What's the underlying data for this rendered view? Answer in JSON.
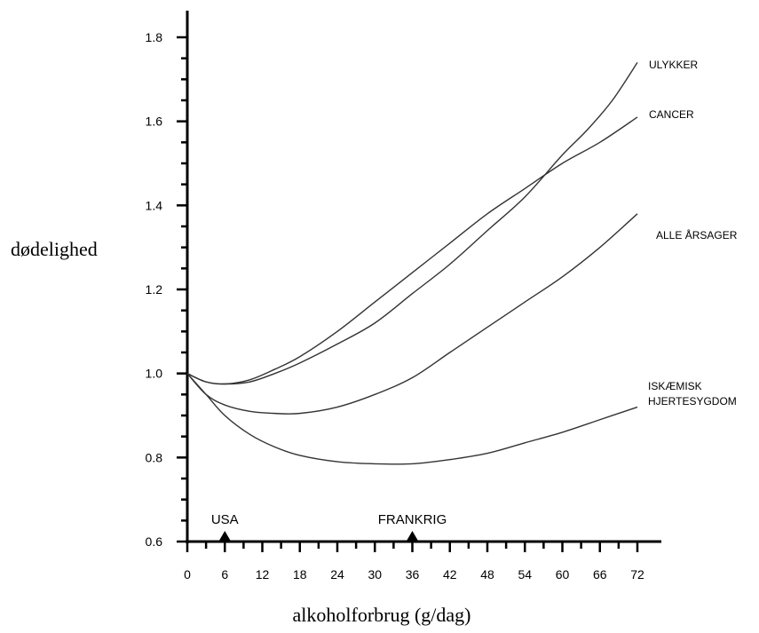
{
  "chart_data": {
    "type": "line",
    "title": "",
    "xlabel": "alkoholforbrug (g/dag)",
    "ylabel": "dødelighed",
    "xlim": [
      0,
      72
    ],
    "ylim": [
      0.6,
      1.8
    ],
    "x_ticks": [
      0,
      6,
      12,
      18,
      24,
      30,
      36,
      42,
      48,
      54,
      60,
      66,
      72
    ],
    "y_ticks": [
      0.6,
      0.8,
      1.0,
      1.2,
      1.4,
      1.6,
      1.8
    ],
    "y_tick_labels": [
      "0.6",
      "0.8",
      "1.0",
      "1.2",
      "1.4",
      "1.6",
      "1.8"
    ],
    "grid": false,
    "series": [
      {
        "name": "ULYKKER",
        "label_lines": [
          "ULYKKER"
        ],
        "x": [
          0,
          3,
          6,
          10,
          14,
          18,
          24,
          30,
          36,
          42,
          48,
          54,
          60,
          64,
          68,
          72
        ],
        "values": [
          1.0,
          0.98,
          0.975,
          0.98,
          1.0,
          1.025,
          1.07,
          1.12,
          1.19,
          1.26,
          1.34,
          1.42,
          1.52,
          1.58,
          1.65,
          1.74
        ]
      },
      {
        "name": "CANCER",
        "label_lines": [
          "CANCER"
        ],
        "x": [
          0,
          3,
          6,
          10,
          14,
          18,
          24,
          30,
          36,
          42,
          48,
          54,
          60,
          66,
          72
        ],
        "values": [
          1.0,
          0.98,
          0.975,
          0.985,
          1.01,
          1.04,
          1.1,
          1.17,
          1.24,
          1.31,
          1.38,
          1.44,
          1.5,
          1.55,
          1.61
        ]
      },
      {
        "name": "ALLE ÅRSAGER",
        "label_lines": [
          "ALLE ÅRSAGER"
        ],
        "x": [
          0,
          3,
          6,
          10,
          14,
          18,
          24,
          30,
          36,
          42,
          48,
          54,
          60,
          66,
          72
        ],
        "values": [
          1.0,
          0.95,
          0.925,
          0.91,
          0.905,
          0.905,
          0.92,
          0.95,
          0.99,
          1.05,
          1.11,
          1.17,
          1.23,
          1.3,
          1.38
        ]
      },
      {
        "name": "ISKÆMISK HJERTESYGDOM",
        "label_lines": [
          "ISKÆMISK",
          "HJERTESYGDOM"
        ],
        "x": [
          0,
          3,
          6,
          10,
          14,
          18,
          24,
          30,
          36,
          42,
          48,
          54,
          60,
          66,
          72
        ],
        "values": [
          1.0,
          0.95,
          0.9,
          0.855,
          0.825,
          0.805,
          0.79,
          0.785,
          0.785,
          0.795,
          0.81,
          0.835,
          0.86,
          0.89,
          0.92
        ]
      }
    ],
    "markers": [
      {
        "label": "USA",
        "x": 6
      },
      {
        "label": "FRANKRIG",
        "x": 36
      }
    ],
    "colors": {
      "axis": "#000000",
      "curve": "#333333",
      "background": "#ffffff"
    }
  }
}
